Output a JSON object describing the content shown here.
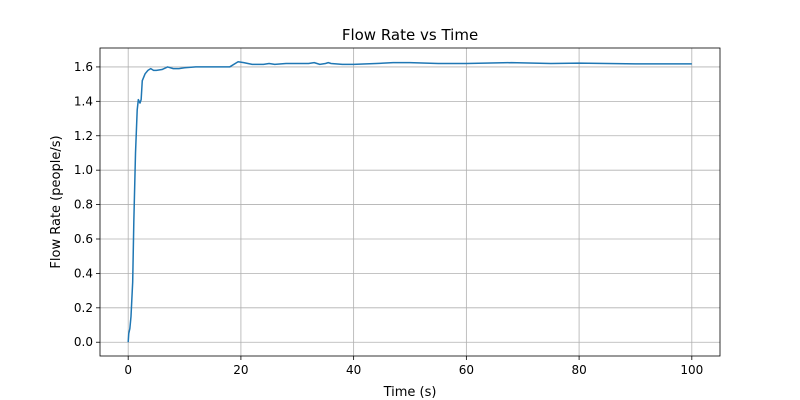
{
  "chart_data": {
    "type": "line",
    "title": "Flow Rate vs Time",
    "x_label": "Time (s)",
    "y_label": "Flow Rate (people/s)",
    "color": "#1f77b4",
    "grid": true,
    "x": [
      0,
      0.1,
      0.3,
      0.5,
      0.8,
      1.0,
      1.3,
      1.6,
      1.8,
      2.1,
      2.3,
      2.5,
      3,
      3.5,
      4,
      4.5,
      5,
      6,
      7,
      8,
      9,
      10,
      12,
      15,
      18,
      19.5,
      20.5,
      22,
      24,
      25,
      26,
      28,
      30,
      32,
      33,
      34,
      35,
      35.5,
      36,
      38,
      40,
      44,
      47,
      50,
      55,
      60,
      68,
      75,
      80,
      85,
      90,
      95,
      100
    ],
    "values": [
      0.0,
      0.05,
      0.08,
      0.15,
      0.35,
      0.7,
      1.1,
      1.35,
      1.41,
      1.39,
      1.41,
      1.52,
      1.56,
      1.58,
      1.59,
      1.58,
      1.58,
      1.585,
      1.6,
      1.59,
      1.59,
      1.595,
      1.6,
      1.6,
      1.6,
      1.63,
      1.625,
      1.615,
      1.615,
      1.62,
      1.615,
      1.62,
      1.62,
      1.62,
      1.625,
      1.615,
      1.62,
      1.625,
      1.62,
      1.615,
      1.615,
      1.62,
      1.625,
      1.625,
      1.62,
      1.62,
      1.625,
      1.62,
      1.622,
      1.62,
      1.618,
      1.618,
      1.618
    ],
    "xlim": [
      -5,
      105
    ],
    "ylim": [
      -0.08,
      1.71
    ],
    "xticks": [
      0,
      20,
      40,
      60,
      80,
      100
    ],
    "yticks": [
      {
        "value": 0,
        "label": "0.0"
      },
      0.2,
      0.4,
      0.6,
      0.8,
      {
        "value": 1,
        "label": "1.0"
      },
      1.2,
      1.4,
      1.6
    ]
  }
}
